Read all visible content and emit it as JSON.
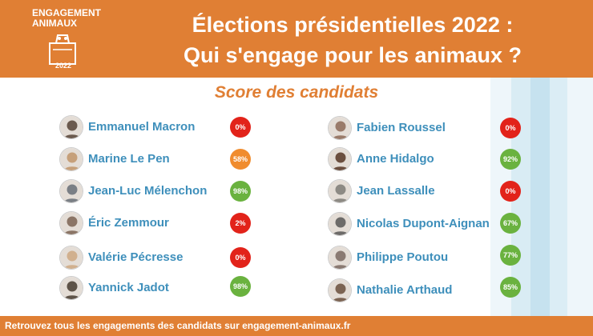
{
  "header": {
    "logo_line1": "ENGAGEMENT",
    "logo_line2": "ANIMAUX",
    "logo_year": "2022",
    "title_line1": "Élections présidentielles 2022 :",
    "title_line2": "Qui s'engage pour les animaux ?"
  },
  "subtitle": "Score des candidats",
  "colors": {
    "orange": "#e07f34",
    "name_blue": "#3e8fbb",
    "score_red": "#e2231a",
    "score_orange": "#f08c2e",
    "score_green": "#6ab23f"
  },
  "left_candidates": [
    {
      "name": "Emmanuel Macron",
      "score": "0%",
      "color": "#e2231a",
      "photo_color": "#6b5a4e"
    },
    {
      "name": "Marine Le Pen",
      "score": "58%",
      "color": "#f08c2e",
      "photo_color": "#c6a07a"
    },
    {
      "name": "Jean-Luc Mélenchon",
      "score": "98%",
      "color": "#6ab23f",
      "photo_color": "#7a7f85"
    },
    {
      "name": "Éric Zemmour",
      "score": "2%",
      "color": "#e2231a",
      "photo_color": "#8b7566"
    },
    {
      "name": "Valérie Pécresse",
      "score": "0%",
      "color": "#e2231a",
      "photo_color": "#d1b08e"
    },
    {
      "name": "Yannick Jadot",
      "score": "98%",
      "color": "#6ab23f",
      "photo_color": "#5e5348"
    }
  ],
  "right_candidates": [
    {
      "name": "Fabien Roussel",
      "score": "0%",
      "color": "#e2231a",
      "photo_color": "#9a7b6a"
    },
    {
      "name": "Anne Hidalgo",
      "score": "92%",
      "color": "#6ab23f",
      "photo_color": "#6b4f3f"
    },
    {
      "name": "Jean Lassalle",
      "score": "0%",
      "color": "#e2231a",
      "photo_color": "#8d8a84"
    },
    {
      "name": "Nicolas Dupont-Aignan",
      "score": "67%",
      "color": "#6ab23f",
      "photo_color": "#6d6b69"
    },
    {
      "name": "Philippe Poutou",
      "score": "77%",
      "color": "#6ab23f",
      "photo_color": "#8a7a72"
    },
    {
      "name": "Nathalie Arthaud",
      "score": "85%",
      "color": "#6ab23f",
      "photo_color": "#7c6453"
    }
  ],
  "footer": {
    "text": "Retrouvez tous les engagements des candidats sur engagement-animaux.fr"
  }
}
